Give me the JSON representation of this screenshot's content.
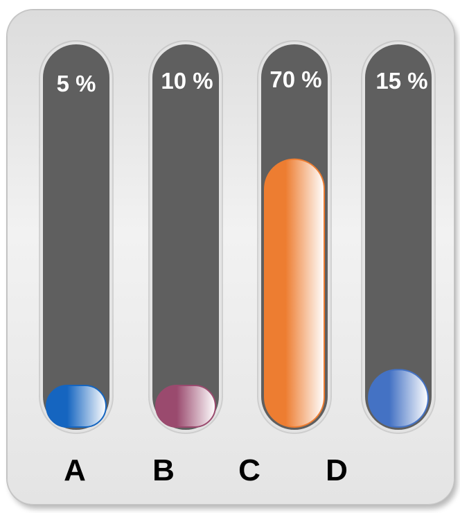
{
  "chart_data": {
    "type": "bar",
    "categories": [
      "A",
      "B",
      "C",
      "D"
    ],
    "values": [
      5,
      10,
      70,
      15
    ],
    "value_labels": [
      "5 %",
      "10 %",
      "70 %",
      "15 %"
    ],
    "title": "",
    "xlabel": "",
    "ylabel": "",
    "ylim": [
      0,
      100
    ],
    "grid": false,
    "legend": "none",
    "colors": [
      "#1565c0",
      "#9a4a6e",
      "#ed7d31",
      "#4472c4"
    ]
  }
}
